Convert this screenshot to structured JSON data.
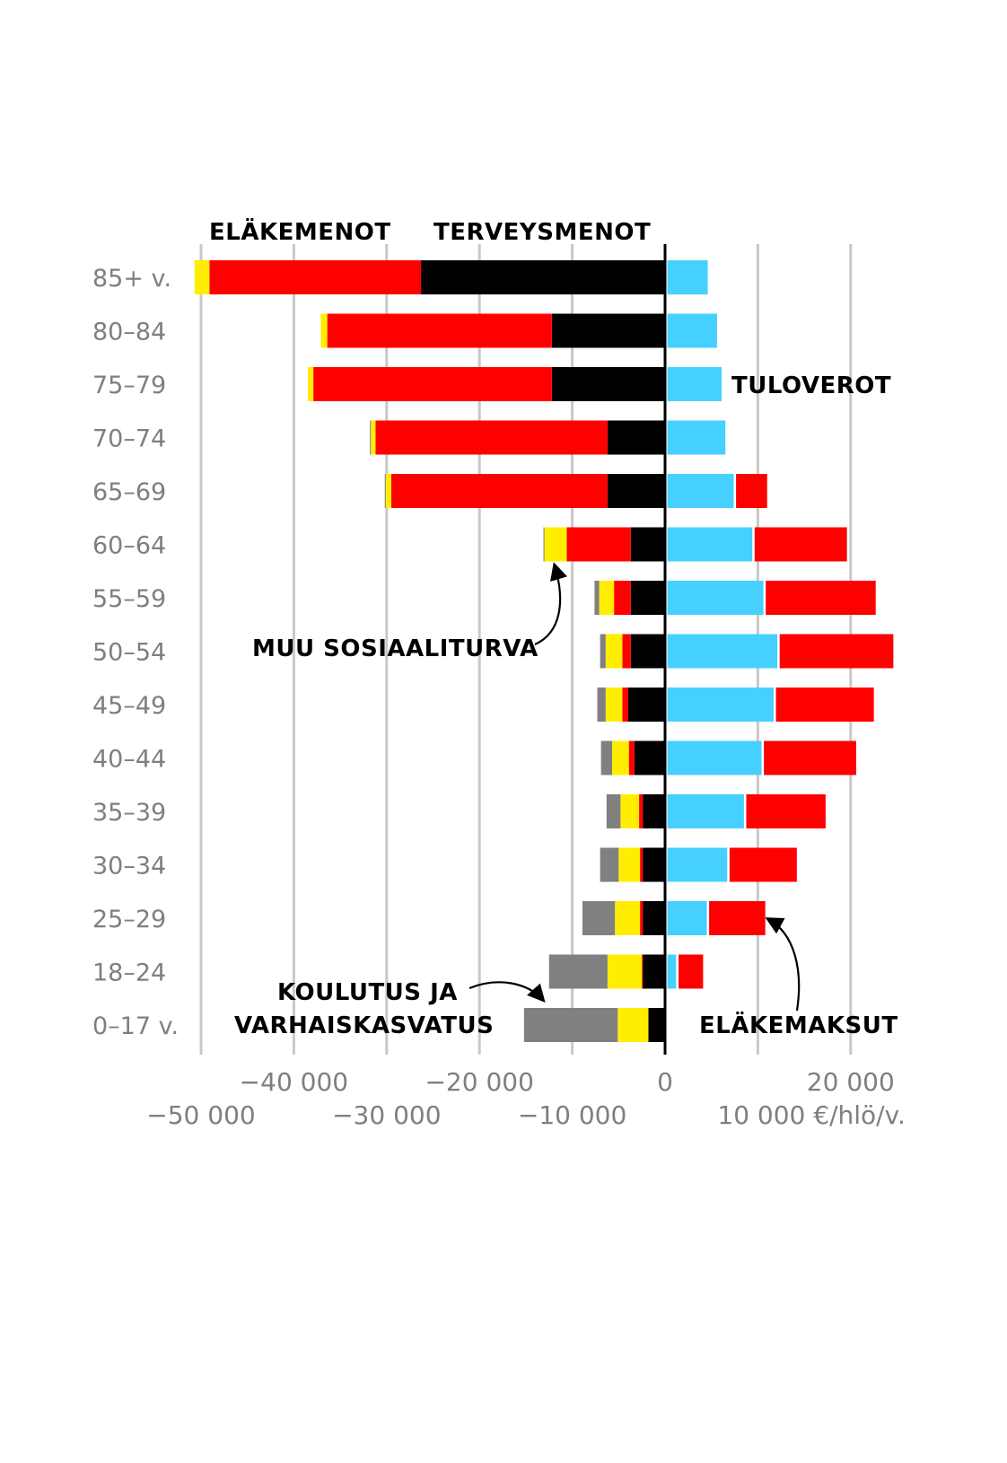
{
  "chart_data": {
    "type": "bar",
    "orientation": "horizontal-diverging-stacked",
    "categories": [
      "85+ v.",
      "80–84",
      "75–79",
      "70–74",
      "65–69",
      "60–64",
      "55–59",
      "50–54",
      "45–49",
      "40–44",
      "35–39",
      "30–34",
      "25–29",
      "18–24",
      "0–17 v."
    ],
    "xlim": [
      -50000,
      25000
    ],
    "grid": true,
    "colors": {
      "terveysmenot": "#000000",
      "elakemenot": "#ff0000",
      "muu_sosiaaliturva": "#ffee00",
      "koulutus": "#808080",
      "tuloverot": "#45d0ff",
      "elakemaksut": "#ff0000"
    },
    "negative_series": [
      {
        "key": "terveysmenot",
        "values": [
          26300,
          12200,
          12200,
          6200,
          6200,
          3700,
          3700,
          3700,
          4000,
          3300,
          2400,
          2400,
          2400,
          2400,
          1800
        ]
      },
      {
        "key": "elakemenot",
        "values": [
          22800,
          24200,
          25700,
          25000,
          23300,
          6900,
          1800,
          900,
          600,
          600,
          400,
          300,
          300,
          100,
          0
        ]
      },
      {
        "key": "muu_sosiaaliturva",
        "values": [
          1600,
          700,
          600,
          500,
          600,
          2400,
          1600,
          1800,
          1800,
          1800,
          2000,
          2300,
          2700,
          3700,
          3300
        ]
      },
      {
        "key": "koulutus",
        "values": [
          0,
          0,
          0,
          100,
          100,
          100,
          500,
          600,
          900,
          1200,
          1500,
          2000,
          3500,
          6300,
          10100
        ]
      }
    ],
    "positive_series": [
      {
        "key": "tuloverot",
        "values": [
          4600,
          5600,
          6100,
          6500,
          7400,
          9400,
          10600,
          12100,
          11700,
          10400,
          8500,
          6700,
          4500,
          1200,
          0
        ]
      },
      {
        "key": "elakemaksut",
        "values": [
          0,
          0,
          0,
          0,
          3600,
          10200,
          12100,
          12500,
          10800,
          10200,
          8800,
          7500,
          6300,
          2900,
          0
        ]
      }
    ],
    "ticks_top": [
      {
        "value": -40000,
        "label": "−40 000"
      },
      {
        "value": -20000,
        "label": "−20 000"
      },
      {
        "value": 0,
        "label": "0"
      },
      {
        "value": 20000,
        "label": "20 000"
      }
    ],
    "ticks_bottom": [
      {
        "value": -50000,
        "label": "−50 000"
      },
      {
        "value": -30000,
        "label": "−30 000"
      },
      {
        "value": -10000,
        "label": "−10 000"
      },
      {
        "value": 10000,
        "label": "10 000 €/hlö/v."
      }
    ],
    "annotations": {
      "elakemenot": "ELÄKEMENOT",
      "terveysmenot": "TERVEYSMENOT",
      "tuloverot": "TULOVEROT",
      "muu_sosiaaliturva": "MUU SOSIAALITURVA",
      "koulutus_line1": "KOULUTUS JA",
      "koulutus_line2": "VARHAISKASVATUS",
      "elakemaksut": "ELÄKEMAKSUT"
    }
  }
}
